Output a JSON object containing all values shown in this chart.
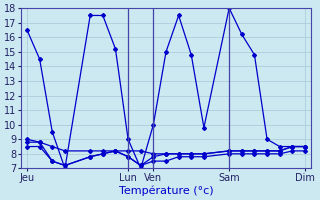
{
  "background_color": "#cce8f0",
  "grid_color": "#a8c8d8",
  "line_color": "#0000cc",
  "ylim": [
    7,
    18
  ],
  "yticks": [
    7,
    8,
    9,
    10,
    11,
    12,
    13,
    14,
    15,
    16,
    17,
    18
  ],
  "xlabel": "Température (°c)",
  "xlabel_fontsize": 8,
  "tick_fontsize": 7,
  "day_labels": [
    "Jeu",
    "Lun",
    "Ven",
    "Sam",
    "Dim"
  ],
  "day_positions": [
    0,
    8,
    10,
    16,
    22
  ],
  "xlim": [
    -0.5,
    22.5
  ],
  "peaked_x": [
    0,
    1,
    2,
    3,
    5,
    6,
    7,
    8,
    9,
    10,
    11,
    12,
    13,
    14,
    16,
    17,
    18,
    19,
    20,
    21,
    22
  ],
  "peaked_y": [
    16.5,
    14.5,
    9.5,
    7.0,
    17.5,
    17.5,
    15.2,
    9.0,
    7.0,
    10.0,
    15.0,
    17.5,
    14.8,
    9.8,
    18.0,
    16.2,
    14.8,
    9.0,
    8.5,
    8.5,
    8.5
  ],
  "flat1_x": [
    0,
    1,
    2,
    3,
    5,
    6,
    7,
    8,
    9,
    10,
    11,
    12,
    13,
    14,
    16,
    17,
    18,
    19,
    20,
    21,
    22
  ],
  "flat1_y": [
    8.8,
    8.8,
    8.5,
    8.2,
    8.2,
    8.2,
    8.2,
    8.2,
    8.2,
    8.0,
    8.0,
    8.0,
    8.0,
    8.0,
    8.2,
    8.2,
    8.2,
    8.2,
    8.2,
    8.5,
    8.5
  ],
  "flat2_x": [
    0,
    1,
    2,
    3,
    5,
    6,
    7,
    8,
    9,
    10,
    11,
    12,
    13,
    14,
    16,
    17,
    18,
    19,
    20,
    21,
    22
  ],
  "flat2_y": [
    8.5,
    8.5,
    7.5,
    7.2,
    7.8,
    8.0,
    8.2,
    7.8,
    7.2,
    7.5,
    7.5,
    7.8,
    7.8,
    7.8,
    8.0,
    8.0,
    8.0,
    8.0,
    8.0,
    8.2,
    8.2
  ],
  "flat3_x": [
    0,
    1,
    2,
    3,
    5,
    6,
    7,
    8,
    9,
    10,
    11,
    12,
    13,
    14,
    16,
    17,
    18,
    19,
    20,
    21,
    22
  ],
  "flat3_y": [
    9.0,
    8.8,
    7.5,
    7.2,
    7.8,
    8.0,
    8.2,
    7.8,
    7.2,
    7.8,
    8.0,
    8.0,
    8.0,
    8.0,
    8.2,
    8.2,
    8.2,
    8.2,
    8.2,
    8.5,
    8.5
  ],
  "marker": "D",
  "markersize": 2.0,
  "linewidth": 0.9,
  "spine_color": "#4444aa",
  "vline_color": "#4444aa",
  "vline_positions": [
    8,
    10,
    16
  ]
}
